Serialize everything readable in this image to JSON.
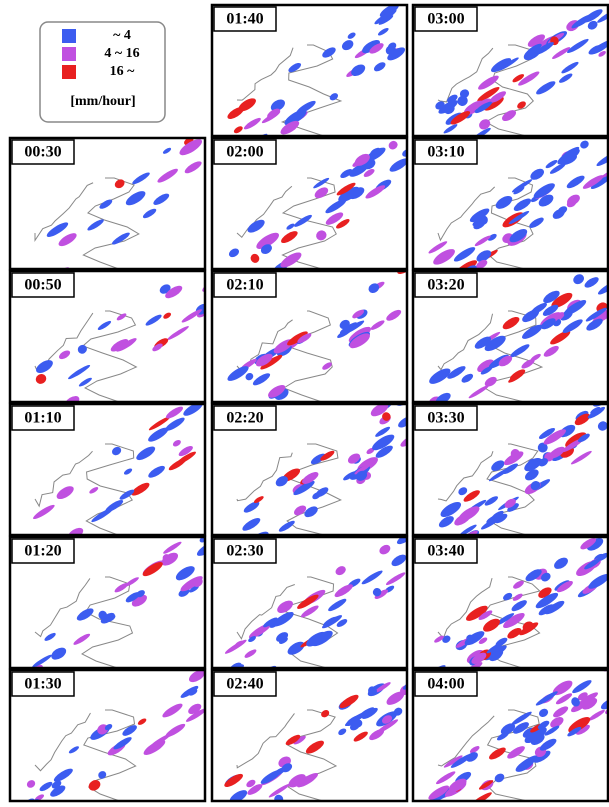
{
  "legend": {
    "items": [
      {
        "label": "~ 4",
        "color": "#3c5cf0"
      },
      {
        "label": "4 ~ 16",
        "color": "#c050e0"
      },
      {
        "label": "16 ~",
        "color": "#e82020"
      }
    ],
    "unit": "[mm/hour]"
  },
  "columns": [
    {
      "panels": [
        "00:30",
        "00:50",
        "01:10",
        "01:20",
        "01:30"
      ]
    },
    {
      "panels": [
        "01:40",
        "02:00",
        "02:10",
        "02:20",
        "02:30",
        "02:40"
      ]
    },
    {
      "panels": [
        "03:00",
        "03:10",
        "03:20",
        "03:30",
        "03:40",
        "04:00"
      ]
    }
  ]
}
